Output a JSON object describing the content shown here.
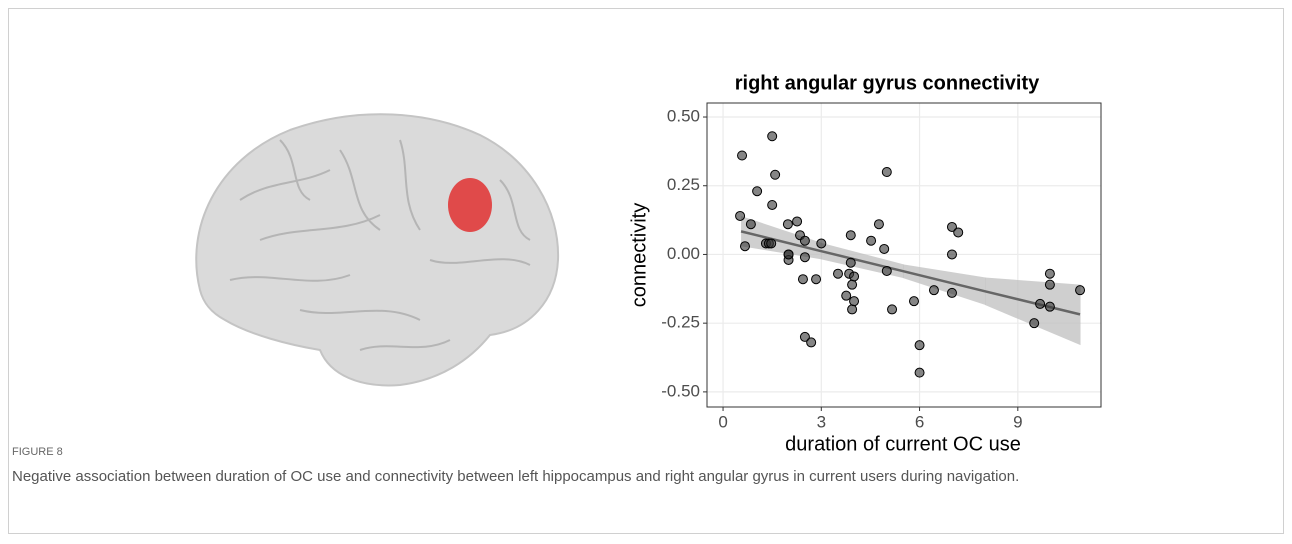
{
  "chart_data": {
    "type": "scatter",
    "title": "right angular gyrus connectivity",
    "x_label": "duration of current OC use",
    "y_label": "connectivity",
    "series": [
      {
        "color": "#333333",
        "x": [
          0.52,
          0.58,
          0.67,
          0.85,
          1.04,
          1.31,
          1.4,
          1.47,
          1.5,
          1.5,
          1.59,
          1.98,
          2.0,
          2.0,
          2.0,
          2.26,
          2.35,
          2.44,
          2.5,
          2.5,
          2.5,
          2.69,
          2.84,
          3.0,
          3.51,
          3.76,
          3.85,
          3.9,
          3.9,
          3.94,
          3.94,
          4.0,
          4.0,
          4.52,
          4.76,
          4.92,
          5.0,
          5.0,
          5.16,
          5.83,
          6.0,
          6.0,
          6.44,
          6.99,
          6.99,
          6.99,
          7.18,
          9.5,
          9.68,
          9.98,
          9.98,
          9.98,
          10.9
        ],
        "values": [
          0.14,
          0.36,
          0.03,
          0.11,
          0.23,
          0.04,
          0.04,
          0.04,
          0.43,
          0.18,
          0.29,
          0.11,
          0.0,
          -0.02,
          0.0,
          0.12,
          0.07,
          -0.09,
          0.05,
          -0.01,
          -0.3,
          -0.32,
          -0.09,
          0.04,
          -0.07,
          -0.15,
          -0.07,
          -0.03,
          0.07,
          -0.2,
          -0.11,
          -0.08,
          -0.17,
          0.05,
          0.11,
          0.02,
          0.3,
          -0.06,
          -0.2,
          -0.17,
          -0.33,
          -0.43,
          -0.13,
          0.1,
          -0.14,
          0.0,
          0.08,
          -0.25,
          -0.18,
          -0.07,
          -0.11,
          -0.19,
          -0.13
        ]
      }
    ],
    "fit": {
      "color": "#666666",
      "band_color": "#bfbfbf",
      "x": [
        0.55,
        3,
        5.5,
        8,
        10.9
      ],
      "values": [
        0.084,
        0.012,
        -0.061,
        -0.134,
        -0.218
      ],
      "lower": [
        0.03,
        -0.018,
        -0.086,
        -0.184,
        -0.33
      ],
      "upper": [
        0.14,
        0.042,
        -0.036,
        -0.084,
        -0.11
      ]
    },
    "xlim": [
      -0.49,
      11.54
    ],
    "ylim": [
      -0.555,
      0.551
    ],
    "xticks": [
      0,
      3,
      6,
      9
    ],
    "yticks": [
      {
        "value": 0.5,
        "label": "0.50"
      },
      {
        "value": 0.25,
        "label": "0.25"
      },
      {
        "value": 0,
        "label": "0.00"
      },
      {
        "value": -0.25,
        "label": "-0.25"
      },
      {
        "value": -0.5,
        "label": "-0.50"
      }
    ],
    "grid": true
  },
  "caption": {
    "label": "FIGURE 8",
    "text": "Negative association between duration of OC use and connectivity between left hippocampus and right angular gyrus in current users during navigation."
  }
}
